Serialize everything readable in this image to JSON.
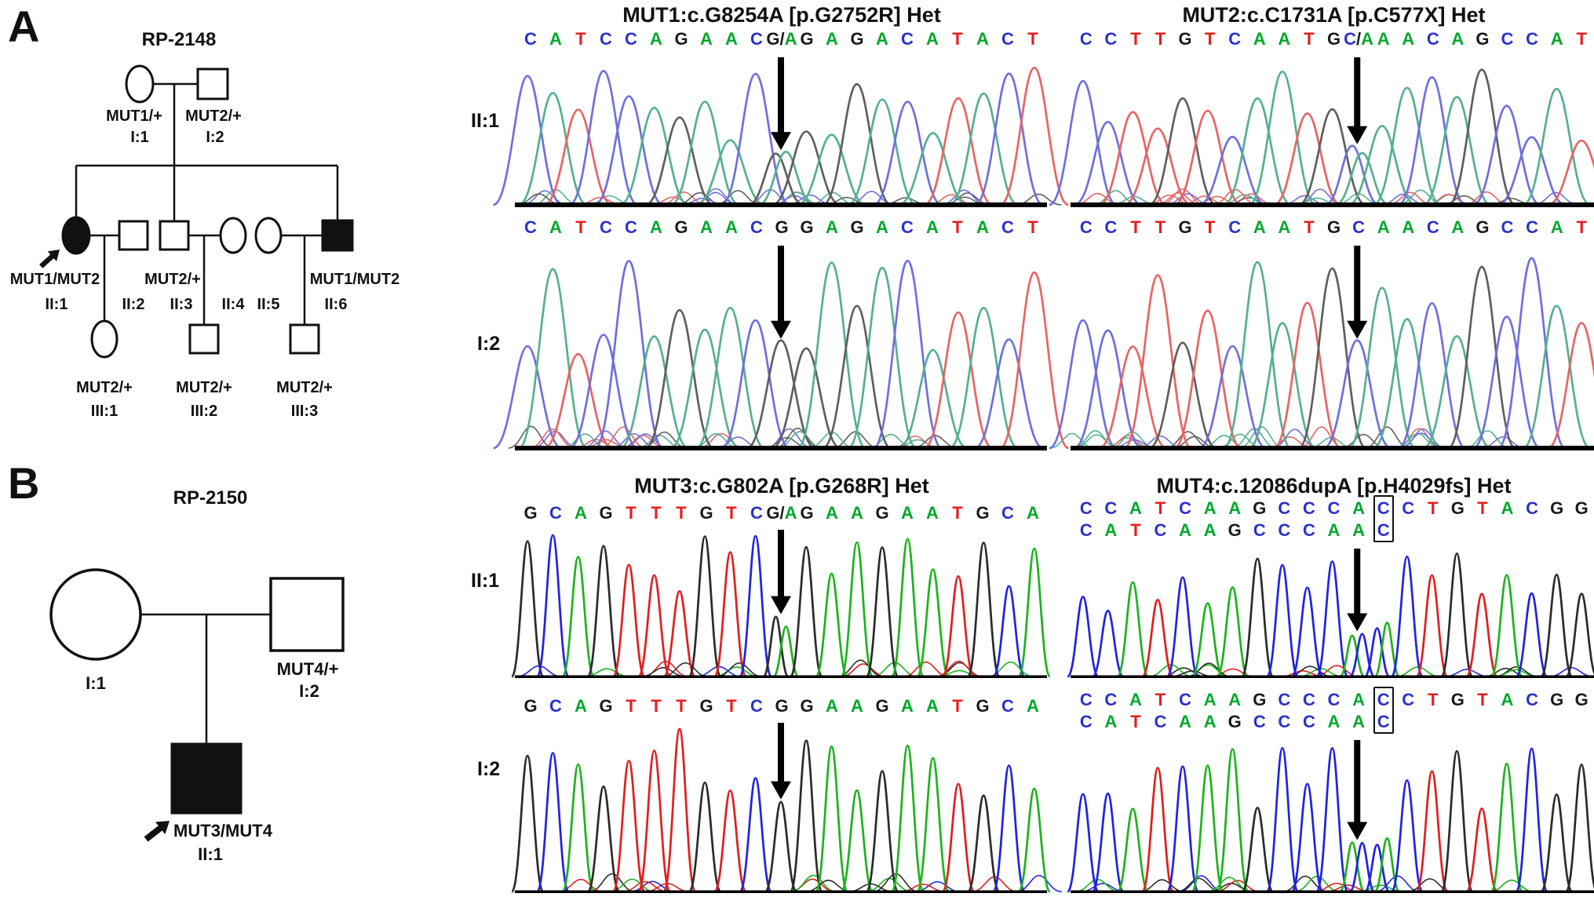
{
  "figure": {
    "panel_a_letter": "A",
    "panel_b_letter": "B",
    "background": "#ffffff"
  },
  "pedigrees": {
    "a": {
      "family_id": "RP-2148",
      "members": [
        {
          "id": "I:1",
          "genotype": "MUT1/+",
          "sex": "female",
          "affected": false
        },
        {
          "id": "I:2",
          "genotype": "MUT2/+",
          "sex": "male",
          "affected": false
        },
        {
          "id": "II:1",
          "genotype": "MUT1/MUT2",
          "sex": "female",
          "affected": true,
          "proband": true
        },
        {
          "id": "II:2",
          "genotype": "",
          "sex": "male",
          "affected": false
        },
        {
          "id": "II:3",
          "genotype": "MUT2/+",
          "sex": "male",
          "affected": false
        },
        {
          "id": "II:4",
          "genotype": "",
          "sex": "female",
          "affected": false
        },
        {
          "id": "II:5",
          "genotype": "",
          "sex": "female",
          "affected": false
        },
        {
          "id": "II:6",
          "genotype": "MUT1/MUT2",
          "sex": "male",
          "affected": true
        },
        {
          "id": "III:1",
          "genotype": "MUT2/+",
          "sex": "female",
          "affected": false
        },
        {
          "id": "III:2",
          "genotype": "MUT2/+",
          "sex": "male",
          "affected": false
        },
        {
          "id": "III:3",
          "genotype": "MUT2/+",
          "sex": "male",
          "affected": false
        }
      ]
    },
    "b": {
      "family_id": "RP-2150",
      "members": [
        {
          "id": "I:1",
          "genotype": "",
          "sex": "female",
          "affected": false
        },
        {
          "id": "I:2",
          "genotype": "MUT4/+",
          "sex": "male",
          "affected": false
        },
        {
          "id": "II:1",
          "genotype": "MUT3/MUT4",
          "sex": "male",
          "affected": true,
          "proband": true
        }
      ]
    }
  },
  "base_letter_colors": {
    "A": "#00a82a",
    "C": "#2b32c8",
    "G": "#1a1a1a",
    "T": "#e81c1c",
    "/": "#1a1a1a"
  },
  "trace_styles": {
    "messy": {
      "palette": {
        "A": "#55b08f",
        "C": "#6f6fdd",
        "G": "#5f5f5f",
        "T": "#e86464"
      },
      "width": 1.35,
      "hmin": 0.42,
      "hvar": 0.5,
      "stroke": 2.7,
      "baseline": 6,
      "noise": 26
    },
    "clean": {
      "palette": {
        "A": "#1db31d",
        "C": "#2222e0",
        "G": "#2b2b2b",
        "T": "#e01f1f"
      },
      "width": 0.62,
      "hmin": 0.5,
      "hvar": 0.45,
      "stroke": 2.7,
      "baseline": 3.5,
      "noise": 16
    }
  },
  "panels": [
    {
      "title": "MUT1:c.G8254A [p.G2752R] Het",
      "rows": [
        {
          "label": "II:1",
          "style": "messy",
          "seed": 11,
          "arrow": 10,
          "seq": [
            "C",
            "A",
            "T",
            "C",
            "C",
            "A",
            "G",
            "A",
            "A",
            "C",
            "G/A",
            "G",
            "A",
            "G",
            "A",
            "C",
            "A",
            "T",
            "A",
            "C",
            "T"
          ]
        },
        {
          "label": "I:2",
          "style": "messy",
          "seed": 12,
          "arrow": 10,
          "seq": [
            "C",
            "A",
            "T",
            "C",
            "C",
            "A",
            "G",
            "A",
            "A",
            "C",
            "G",
            "G",
            "A",
            "G",
            "A",
            "C",
            "A",
            "T",
            "A",
            "C",
            "T"
          ]
        }
      ]
    },
    {
      "title": "MUT2:c.C1731A [p.C577X] Het",
      "rows": [
        {
          "label": "II:1",
          "style": "messy",
          "seed": 21,
          "arrow": 11,
          "seq": [
            "C",
            "C",
            "T",
            "T",
            "G",
            "T",
            "C",
            "A",
            "A",
            "T",
            "G",
            "C/A",
            "A",
            "A",
            "C",
            "A",
            "G",
            "C",
            "C",
            "A",
            "T"
          ]
        },
        {
          "label": "I:2",
          "style": "messy",
          "seed": 22,
          "arrow": 11,
          "seq": [
            "C",
            "C",
            "T",
            "T",
            "G",
            "T",
            "C",
            "A",
            "A",
            "T",
            "G",
            "C",
            "A",
            "A",
            "C",
            "A",
            "G",
            "C",
            "C",
            "A",
            "T"
          ]
        }
      ]
    },
    {
      "title": "MUT3:c.G802A [p.G268R] Het",
      "rows": [
        {
          "label": "II:1",
          "style": "clean",
          "seed": 31,
          "arrow": 10,
          "seq": [
            "G",
            "C",
            "A",
            "G",
            "T",
            "T",
            "T",
            "G",
            "T",
            "C",
            "G/A",
            "G",
            "A",
            "A",
            "G",
            "A",
            "A",
            "T",
            "G",
            "C",
            "A"
          ]
        },
        {
          "label": "I:2",
          "style": "clean",
          "seed": 32,
          "arrow": 10,
          "seq": [
            "G",
            "C",
            "A",
            "G",
            "T",
            "T",
            "T",
            "G",
            "T",
            "C",
            "G",
            "G",
            "A",
            "A",
            "G",
            "A",
            "A",
            "T",
            "G",
            "C",
            "A"
          ]
        }
      ]
    },
    {
      "title": "MUT4:c.12086dupA [p.H4029fs] Het",
      "rows": [
        {
          "label": "II:1",
          "style": "clean",
          "seed": 41,
          "arrow": 11,
          "box_col": 12,
          "seq": [
            "C",
            "C",
            "A",
            "T",
            "C",
            "A",
            "A",
            "G",
            "C",
            "C",
            "C",
            "A",
            "C",
            "C",
            "T",
            "G",
            "T",
            "A",
            "C",
            "G",
            "G"
          ],
          "seq2": [
            "C",
            "A",
            "T",
            "C",
            "A",
            "A",
            "G",
            "C",
            "C",
            "C",
            "A",
            "A",
            "C"
          ],
          "trace": [
            "C",
            "C",
            "A",
            "T",
            "C",
            "A",
            "A",
            "G",
            "C",
            "C",
            "C",
            "A/C",
            "C/A",
            "C",
            "T",
            "G",
            "T",
            "A",
            "C",
            "G",
            "G"
          ]
        },
        {
          "label": "I:2",
          "style": "clean",
          "seed": 42,
          "arrow": 11,
          "box_col": 12,
          "seq": [
            "C",
            "C",
            "A",
            "T",
            "C",
            "A",
            "A",
            "G",
            "C",
            "C",
            "C",
            "A",
            "C",
            "C",
            "T",
            "G",
            "T",
            "A",
            "C",
            "G",
            "G"
          ],
          "seq2": [
            "C",
            "A",
            "T",
            "C",
            "A",
            "A",
            "G",
            "C",
            "C",
            "C",
            "A",
            "A",
            "C"
          ],
          "trace": [
            "C",
            "C",
            "A",
            "T",
            "C",
            "A",
            "A",
            "G",
            "C",
            "C",
            "C",
            "A/C",
            "C/A",
            "C",
            "T",
            "G",
            "T",
            "A",
            "C",
            "G",
            "G"
          ]
        }
      ]
    }
  ]
}
